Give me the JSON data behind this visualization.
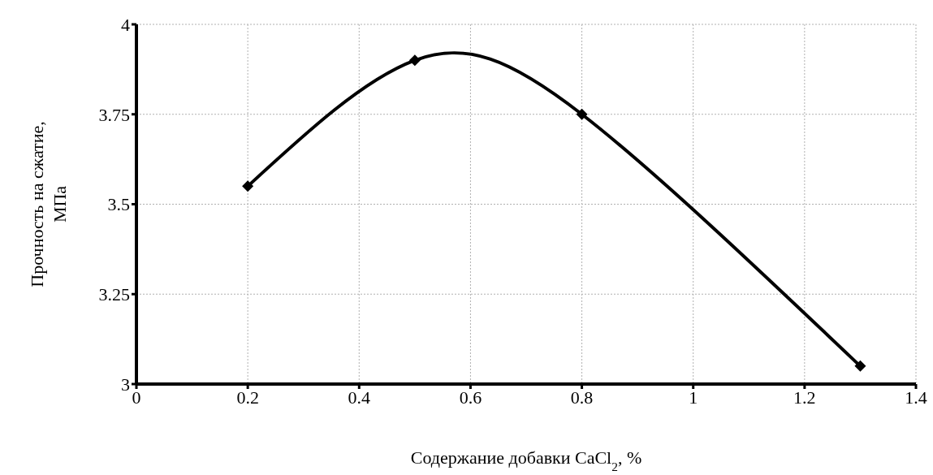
{
  "chart_data": {
    "type": "line",
    "xlabel": "Содержание добавки CaCl$_{2}$, %",
    "ylabel": "Прочность на сжатие, МПа",
    "x": [
      0.2,
      0.5,
      0.8,
      1.3
    ],
    "series": [
      {
        "color": "#000000",
        "values": [
          3.55,
          3.9,
          3.75,
          3.05
        ]
      }
    ],
    "xlim": [
      0,
      1.4
    ],
    "xticks": [
      0,
      0.2,
      0.4,
      0.6,
      0.8,
      1,
      1.2,
      1.4
    ],
    "ylim": [
      3,
      4
    ],
    "yticks": [
      3,
      3.25,
      3.5,
      3.75,
      4
    ],
    "grid": true,
    "legend": false,
    "marker": "diamond",
    "line_style": "solid"
  }
}
